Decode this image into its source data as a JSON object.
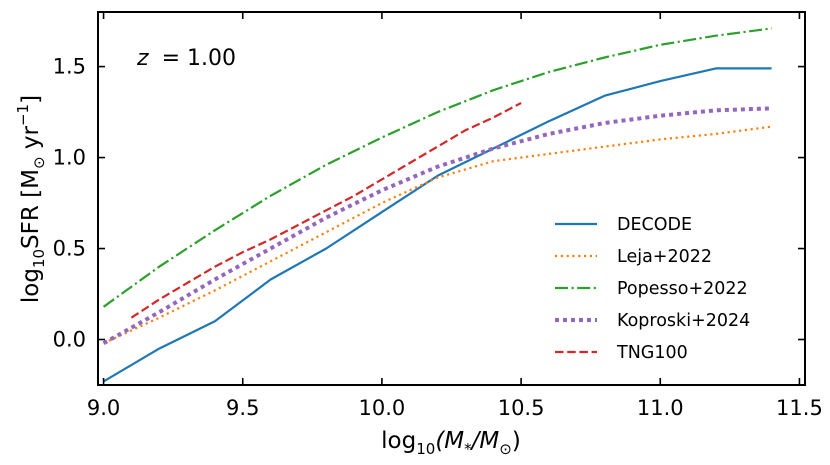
{
  "chart_data": {
    "type": "line",
    "title": "",
    "annotation": {
      "z_symbol": "z",
      "z_value": "= 1.00"
    },
    "xlabel": {
      "prefix": "log",
      "sub": "10",
      "body": "(M",
      "star": "*",
      "slash": "/M",
      "sun": "⊙",
      "close": ")"
    },
    "ylabel": {
      "prefix": "log",
      "sub": "10",
      "body": "SFR [M",
      "sun": "⊙",
      "unit": " yr",
      "exp": "−1",
      "close": "]"
    },
    "xlim": [
      8.98,
      11.52
    ],
    "ylim": [
      -0.25,
      1.8
    ],
    "xticks": [
      9.0,
      9.5,
      10.0,
      10.5,
      11.0,
      11.5
    ],
    "xtick_labels": [
      "9.0",
      "9.5",
      "10.0",
      "10.5",
      "11.0",
      "11.5"
    ],
    "yticks": [
      0.0,
      0.5,
      1.0,
      1.5
    ],
    "ytick_labels": [
      "0.0",
      "0.5",
      "1.0",
      "1.5"
    ],
    "legend_position": "lower-right",
    "series": [
      {
        "name": "DECODE",
        "color": "#1f77b4",
        "dash": "solid",
        "width": 2.2,
        "x": [
          9.0,
          9.2,
          9.4,
          9.6,
          9.8,
          10.0,
          10.2,
          10.4,
          10.6,
          10.8,
          11.0,
          11.2,
          11.4
        ],
        "y": [
          -0.23,
          -0.05,
          0.1,
          0.33,
          0.5,
          0.7,
          0.9,
          1.05,
          1.2,
          1.34,
          1.42,
          1.49,
          1.49
        ]
      },
      {
        "name": "Leja+2022",
        "color": "#ff7f0e",
        "dash": "dotted",
        "width": 2.2,
        "x": [
          9.0,
          9.2,
          9.4,
          9.6,
          9.8,
          10.0,
          10.2,
          10.4,
          10.6,
          10.8,
          11.0,
          11.2,
          11.4
        ],
        "y": [
          -0.02,
          0.12,
          0.27,
          0.43,
          0.59,
          0.75,
          0.89,
          0.98,
          1.02,
          1.06,
          1.1,
          1.13,
          1.17
        ]
      },
      {
        "name": "Popesso+2022",
        "color": "#2ca02c",
        "dash": "dashdot",
        "width": 2.2,
        "x": [
          9.0,
          9.2,
          9.4,
          9.6,
          9.8,
          10.0,
          10.2,
          10.4,
          10.6,
          10.8,
          11.0,
          11.2,
          11.4
        ],
        "y": [
          0.18,
          0.4,
          0.6,
          0.79,
          0.96,
          1.11,
          1.25,
          1.37,
          1.47,
          1.55,
          1.62,
          1.67,
          1.71
        ]
      },
      {
        "name": "Koproski+2024",
        "color": "#9467bd",
        "dash": "dotted-thick",
        "width": 4,
        "x": [
          9.0,
          9.2,
          9.4,
          9.6,
          9.8,
          10.0,
          10.2,
          10.4,
          10.6,
          10.8,
          11.0,
          11.2,
          11.4
        ],
        "y": [
          -0.02,
          0.15,
          0.33,
          0.5,
          0.67,
          0.82,
          0.95,
          1.05,
          1.13,
          1.19,
          1.23,
          1.26,
          1.27
        ]
      },
      {
        "name": "TNG100",
        "color": "#d62728",
        "dash": "dashed",
        "width": 2.2,
        "x": [
          9.1,
          9.2,
          9.3,
          9.4,
          9.5,
          9.6,
          9.7,
          9.8,
          9.9,
          10.0,
          10.1,
          10.2,
          10.3,
          10.4,
          10.5
        ],
        "y": [
          0.12,
          0.22,
          0.31,
          0.4,
          0.48,
          0.55,
          0.63,
          0.71,
          0.79,
          0.88,
          0.97,
          1.06,
          1.15,
          1.22,
          1.3
        ]
      }
    ]
  }
}
